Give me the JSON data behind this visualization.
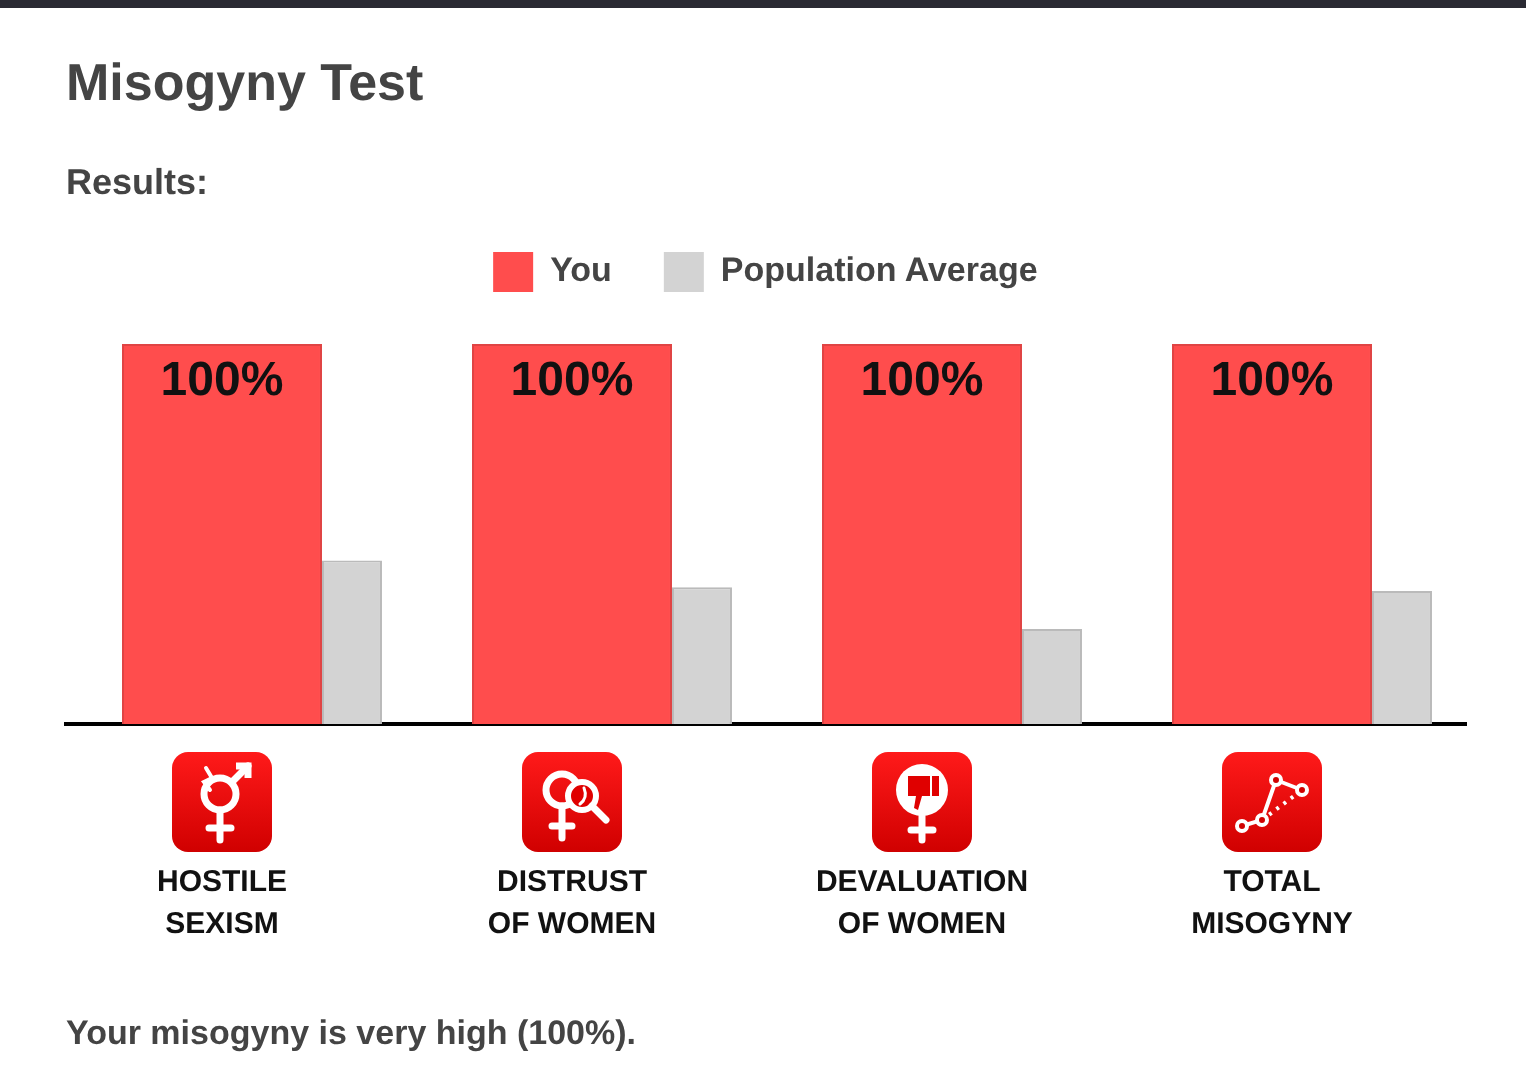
{
  "chart_data": {
    "type": "bar",
    "title": "Misogyny Test",
    "subtitle": "Results:",
    "categories": [
      "HOSTILE SEXISM",
      "DISTRUST OF WOMEN",
      "DEVALUATION OF WOMEN",
      "TOTAL MISOGYNY"
    ],
    "series": [
      {
        "name": "You",
        "color": "#ff4d4d",
        "values": [
          100,
          100,
          100,
          100
        ],
        "value_labels": [
          "100%",
          "100%",
          "100%",
          "100%"
        ]
      },
      {
        "name": "Population Average",
        "color": "#d3d3d3",
        "values": [
          43,
          36,
          25,
          35
        ]
      }
    ],
    "legend": "top",
    "tick_labels": "x",
    "annotations": [
      "Your misogyny is very high (100%)."
    ]
  }
}
